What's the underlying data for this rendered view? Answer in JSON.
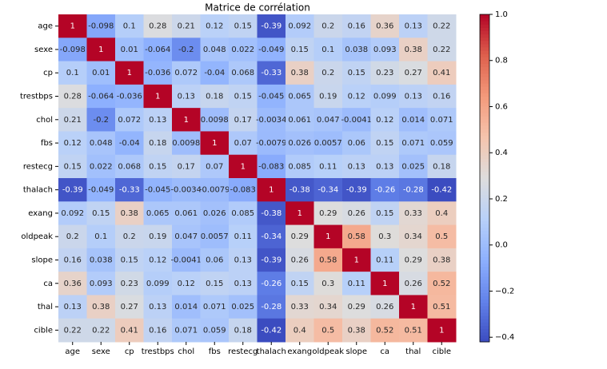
{
  "chart_data": {
    "type": "heatmap",
    "title": "Matrice de corrélation",
    "categories": [
      "age",
      "sexe",
      "cp",
      "trestbps",
      "chol",
      "fbs",
      "restecg",
      "thalach",
      "exang",
      "oldpeak",
      "slope",
      "ca",
      "thal",
      "cible"
    ],
    "values": [
      [
        1,
        -0.098,
        0.1,
        0.28,
        0.21,
        0.12,
        0.15,
        -0.39,
        0.092,
        0.2,
        0.16,
        0.36,
        0.13,
        0.22
      ],
      [
        -0.098,
        1,
        0.01,
        -0.064,
        -0.2,
        0.048,
        0.022,
        -0.049,
        0.15,
        0.1,
        0.038,
        0.093,
        0.38,
        0.22
      ],
      [
        0.1,
        0.01,
        1,
        -0.036,
        0.072,
        -0.04,
        0.068,
        -0.33,
        0.38,
        0.2,
        0.15,
        0.23,
        0.27,
        0.41
      ],
      [
        0.28,
        -0.064,
        -0.036,
        1,
        0.13,
        0.18,
        0.15,
        -0.045,
        0.065,
        0.19,
        0.12,
        0.099,
        0.13,
        0.16
      ],
      [
        0.21,
        -0.2,
        0.072,
        0.13,
        1,
        0.0098,
        0.17,
        -0.0034,
        0.061,
        0.047,
        -0.0041,
        0.12,
        0.014,
        0.071
      ],
      [
        0.12,
        0.048,
        -0.04,
        0.18,
        0.0098,
        1,
        0.07,
        -0.0079,
        0.026,
        0.0057,
        0.06,
        0.15,
        0.071,
        0.059
      ],
      [
        0.15,
        0.022,
        0.068,
        0.15,
        0.17,
        0.07,
        1,
        -0.083,
        0.085,
        0.11,
        0.13,
        0.13,
        0.025,
        0.18
      ],
      [
        -0.39,
        -0.049,
        -0.33,
        -0.045,
        -0.0034,
        -0.0079,
        -0.083,
        1,
        -0.38,
        -0.34,
        -0.39,
        -0.26,
        -0.28,
        -0.42
      ],
      [
        0.092,
        0.15,
        0.38,
        0.065,
        0.061,
        0.026,
        0.085,
        -0.38,
        1,
        0.29,
        0.26,
        0.15,
        0.33,
        0.4
      ],
      [
        0.2,
        0.1,
        0.2,
        0.19,
        0.047,
        0.0057,
        0.11,
        -0.34,
        0.29,
        1,
        0.58,
        0.3,
        0.34,
        0.5
      ],
      [
        0.16,
        0.038,
        0.15,
        0.12,
        -0.0041,
        0.06,
        0.13,
        -0.39,
        0.26,
        0.58,
        1,
        0.11,
        0.29,
        0.38
      ],
      [
        0.36,
        0.093,
        0.23,
        0.099,
        0.12,
        0.15,
        0.13,
        -0.26,
        0.15,
        0.3,
        0.11,
        1,
        0.26,
        0.52
      ],
      [
        0.13,
        0.38,
        0.27,
        0.13,
        0.014,
        0.071,
        0.025,
        -0.28,
        0.33,
        0.34,
        0.29,
        0.26,
        1,
        0.51
      ],
      [
        0.22,
        0.22,
        0.41,
        0.16,
        0.071,
        0.059,
        0.18,
        -0.42,
        0.4,
        0.5,
        0.38,
        0.52,
        0.51,
        1
      ]
    ],
    "colormap": "coolwarm",
    "zlim": [
      -0.42,
      1
    ],
    "zticks": [
      {
        "value": 1,
        "label": "1.0"
      },
      {
        "value": 0.8,
        "label": "0.8"
      },
      {
        "value": 0.6,
        "label": "0.6"
      },
      {
        "value": 0.4,
        "label": "0.4"
      },
      {
        "value": 0.2,
        "label": "0.2"
      },
      {
        "value": 0,
        "label": "0.0"
      },
      {
        "value": -0.2,
        "label": "−0.2"
      },
      {
        "value": -0.4,
        "label": "−0.4"
      }
    ]
  }
}
